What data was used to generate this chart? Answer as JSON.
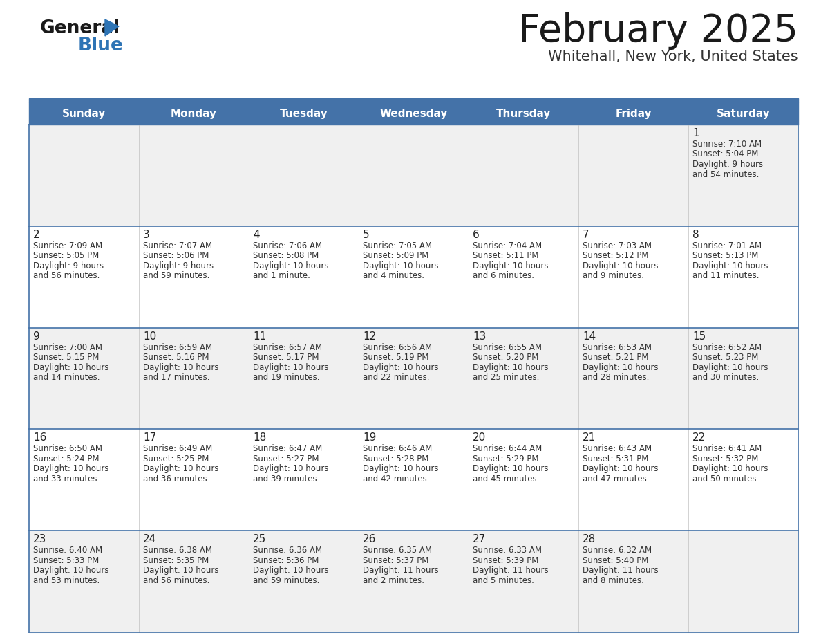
{
  "title": "February 2025",
  "subtitle": "Whitehall, New York, United States",
  "header_bg": "#4472a8",
  "header_text": "#ffffff",
  "odd_row_bg": "#f0f0f0",
  "even_row_bg": "#ffffff",
  "border_color": "#4472a8",
  "grid_color": "#c0c0c0",
  "day_headers": [
    "Sunday",
    "Monday",
    "Tuesday",
    "Wednesday",
    "Thursday",
    "Friday",
    "Saturday"
  ],
  "title_color": "#1a1a1a",
  "subtitle_color": "#333333",
  "cell_text_color": "#333333",
  "day_num_color": "#222222",
  "logo_general_color": "#1a1a1a",
  "logo_blue_color": "#2e74b5",
  "logo_triangle_color": "#2e74b5",
  "calendar": [
    [
      null,
      null,
      null,
      null,
      null,
      null,
      {
        "day": 1,
        "sunrise": "7:10 AM",
        "sunset": "5:04 PM",
        "daylight": "9 hours and 54 minutes."
      }
    ],
    [
      {
        "day": 2,
        "sunrise": "7:09 AM",
        "sunset": "5:05 PM",
        "daylight": "9 hours and 56 minutes."
      },
      {
        "day": 3,
        "sunrise": "7:07 AM",
        "sunset": "5:06 PM",
        "daylight": "9 hours and 59 minutes."
      },
      {
        "day": 4,
        "sunrise": "7:06 AM",
        "sunset": "5:08 PM",
        "daylight": "10 hours and 1 minute."
      },
      {
        "day": 5,
        "sunrise": "7:05 AM",
        "sunset": "5:09 PM",
        "daylight": "10 hours and 4 minutes."
      },
      {
        "day": 6,
        "sunrise": "7:04 AM",
        "sunset": "5:11 PM",
        "daylight": "10 hours and 6 minutes."
      },
      {
        "day": 7,
        "sunrise": "7:03 AM",
        "sunset": "5:12 PM",
        "daylight": "10 hours and 9 minutes."
      },
      {
        "day": 8,
        "sunrise": "7:01 AM",
        "sunset": "5:13 PM",
        "daylight": "10 hours and 11 minutes."
      }
    ],
    [
      {
        "day": 9,
        "sunrise": "7:00 AM",
        "sunset": "5:15 PM",
        "daylight": "10 hours and 14 minutes."
      },
      {
        "day": 10,
        "sunrise": "6:59 AM",
        "sunset": "5:16 PM",
        "daylight": "10 hours and 17 minutes."
      },
      {
        "day": 11,
        "sunrise": "6:57 AM",
        "sunset": "5:17 PM",
        "daylight": "10 hours and 19 minutes."
      },
      {
        "day": 12,
        "sunrise": "6:56 AM",
        "sunset": "5:19 PM",
        "daylight": "10 hours and 22 minutes."
      },
      {
        "day": 13,
        "sunrise": "6:55 AM",
        "sunset": "5:20 PM",
        "daylight": "10 hours and 25 minutes."
      },
      {
        "day": 14,
        "sunrise": "6:53 AM",
        "sunset": "5:21 PM",
        "daylight": "10 hours and 28 minutes."
      },
      {
        "day": 15,
        "sunrise": "6:52 AM",
        "sunset": "5:23 PM",
        "daylight": "10 hours and 30 minutes."
      }
    ],
    [
      {
        "day": 16,
        "sunrise": "6:50 AM",
        "sunset": "5:24 PM",
        "daylight": "10 hours and 33 minutes."
      },
      {
        "day": 17,
        "sunrise": "6:49 AM",
        "sunset": "5:25 PM",
        "daylight": "10 hours and 36 minutes."
      },
      {
        "day": 18,
        "sunrise": "6:47 AM",
        "sunset": "5:27 PM",
        "daylight": "10 hours and 39 minutes."
      },
      {
        "day": 19,
        "sunrise": "6:46 AM",
        "sunset": "5:28 PM",
        "daylight": "10 hours and 42 minutes."
      },
      {
        "day": 20,
        "sunrise": "6:44 AM",
        "sunset": "5:29 PM",
        "daylight": "10 hours and 45 minutes."
      },
      {
        "day": 21,
        "sunrise": "6:43 AM",
        "sunset": "5:31 PM",
        "daylight": "10 hours and 47 minutes."
      },
      {
        "day": 22,
        "sunrise": "6:41 AM",
        "sunset": "5:32 PM",
        "daylight": "10 hours and 50 minutes."
      }
    ],
    [
      {
        "day": 23,
        "sunrise": "6:40 AM",
        "sunset": "5:33 PM",
        "daylight": "10 hours and 53 minutes."
      },
      {
        "day": 24,
        "sunrise": "6:38 AM",
        "sunset": "5:35 PM",
        "daylight": "10 hours and 56 minutes."
      },
      {
        "day": 25,
        "sunrise": "6:36 AM",
        "sunset": "5:36 PM",
        "daylight": "10 hours and 59 minutes."
      },
      {
        "day": 26,
        "sunrise": "6:35 AM",
        "sunset": "5:37 PM",
        "daylight": "11 hours and 2 minutes."
      },
      {
        "day": 27,
        "sunrise": "6:33 AM",
        "sunset": "5:39 PM",
        "daylight": "11 hours and 5 minutes."
      },
      {
        "day": 28,
        "sunrise": "6:32 AM",
        "sunset": "5:40 PM",
        "daylight": "11 hours and 8 minutes."
      },
      null
    ]
  ]
}
